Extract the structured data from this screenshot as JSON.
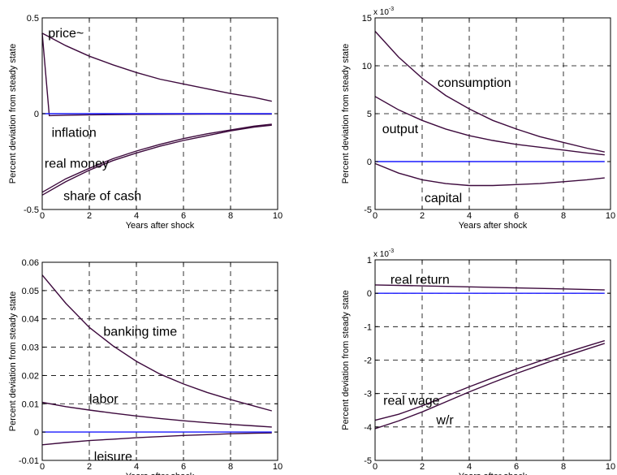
{
  "chart_data": [
    {
      "type": "line",
      "xlabel": "Years after shock",
      "ylabel": "Percent deviation from steady state",
      "xlim": [
        0,
        10
      ],
      "ylim": [
        -0.5,
        0.5
      ],
      "xticks": [
        "0",
        "2",
        "4",
        "6",
        "8",
        "10"
      ],
      "yticks": [
        {
          "v": -0.5,
          "label": "-0.5"
        },
        {
          "v": 0,
          "label": "0"
        },
        {
          "v": 0.5,
          "label": "0.5"
        }
      ],
      "grid": true,
      "exponent_label": "",
      "series": [
        {
          "color": "#3d0a3d",
          "x": [
            0,
            1,
            2,
            3,
            4,
            5,
            6,
            7,
            8,
            9,
            9.75
          ],
          "y": [
            0.42,
            0.355,
            0.3,
            0.255,
            0.215,
            0.18,
            0.155,
            0.13,
            0.105,
            0.085,
            0.065
          ]
        },
        {
          "color": "#3d0a3d",
          "x": [
            0,
            0.3,
            1,
            2,
            4,
            6,
            8,
            9.75
          ],
          "y": [
            0.42,
            -0.01,
            -0.008,
            -0.006,
            -0.004,
            -0.003,
            -0.002,
            -0.002
          ]
        },
        {
          "color": "#3d0a3d",
          "x": [
            0,
            1,
            2,
            3,
            4,
            5,
            6,
            7,
            8,
            9,
            9.75
          ],
          "y": [
            -0.41,
            -0.34,
            -0.285,
            -0.235,
            -0.195,
            -0.16,
            -0.13,
            -0.105,
            -0.085,
            -0.065,
            -0.055
          ]
        },
        {
          "color": "#3d0a3d",
          "x": [
            0,
            1,
            2,
            3,
            4,
            5,
            6,
            7,
            8,
            9,
            9.75
          ],
          "y": [
            -0.425,
            -0.355,
            -0.295,
            -0.245,
            -0.205,
            -0.17,
            -0.14,
            -0.115,
            -0.09,
            -0.07,
            -0.06
          ]
        },
        {
          "color": "#1a1aff",
          "x": [
            0,
            9.75
          ],
          "y": [
            0,
            0
          ]
        }
      ],
      "annotations": [
        {
          "text": "price~",
          "x": 0.25,
          "y": 0.42
        },
        {
          "text": "inflation",
          "x": 0.4,
          "y": -0.1
        },
        {
          "text": "real money",
          "x": 0.1,
          "y": -0.26
        },
        {
          "text": "share of cash",
          "x": 0.9,
          "y": -0.43
        }
      ]
    },
    {
      "type": "line",
      "xlabel": "Years after shock",
      "ylabel": "Percent deviation from steady state",
      "xlim": [
        0,
        10
      ],
      "ylim": [
        -5,
        15
      ],
      "xticks": [
        "0",
        "2",
        "4",
        "6",
        "8",
        "10"
      ],
      "yticks": [
        {
          "v": -5,
          "label": "-5"
        },
        {
          "v": 0,
          "label": "0"
        },
        {
          "v": 5,
          "label": "5"
        },
        {
          "v": 10,
          "label": "10"
        },
        {
          "v": 15,
          "label": "15"
        }
      ],
      "grid": true,
      "exponent_label": "x 10-3",
      "series": [
        {
          "name": "consumption",
          "color": "#3d0a3d",
          "x": [
            0,
            1,
            2,
            3,
            4,
            5,
            6,
            7,
            8,
            9,
            9.75
          ],
          "y": [
            13.6,
            10.9,
            8.7,
            6.9,
            5.5,
            4.3,
            3.4,
            2.6,
            2.0,
            1.4,
            1.0
          ]
        },
        {
          "name": "output",
          "color": "#3d0a3d",
          "x": [
            0,
            1,
            2,
            3,
            4,
            5,
            6,
            7,
            8,
            9,
            9.75
          ],
          "y": [
            6.8,
            5.4,
            4.3,
            3.4,
            2.7,
            2.2,
            1.8,
            1.5,
            1.2,
            0.9,
            0.7
          ]
        },
        {
          "name": "capital",
          "color": "#3d0a3d",
          "x": [
            0,
            1,
            2,
            3,
            4,
            5,
            6,
            7,
            8,
            9,
            9.75
          ],
          "y": [
            -0.2,
            -1.2,
            -1.9,
            -2.3,
            -2.5,
            -2.5,
            -2.4,
            -2.3,
            -2.1,
            -1.9,
            -1.7
          ]
        },
        {
          "color": "#1a1aff",
          "x": [
            0,
            9.75
          ],
          "y": [
            0,
            0
          ]
        }
      ],
      "annotations": [
        {
          "text": "consumption",
          "x": 2.65,
          "y": 8.2
        },
        {
          "text": "output",
          "x": 0.3,
          "y": 3.4
        },
        {
          "text": "capital",
          "x": 2.1,
          "y": -3.8
        }
      ]
    },
    {
      "type": "line",
      "xlabel": "Years after shock",
      "ylabel": "Percent deviation from steady state",
      "xlim": [
        0,
        10
      ],
      "ylim": [
        -0.01,
        0.06
      ],
      "xticks": [
        "0",
        "2",
        "4",
        "6",
        "8",
        "10"
      ],
      "yticks": [
        {
          "v": -0.01,
          "label": "-0.01"
        },
        {
          "v": 0,
          "label": "0"
        },
        {
          "v": 0.01,
          "label": "0.01"
        },
        {
          "v": 0.02,
          "label": "0.02"
        },
        {
          "v": 0.03,
          "label": "0.03"
        },
        {
          "v": 0.04,
          "label": "0.04"
        },
        {
          "v": 0.05,
          "label": "0.05"
        },
        {
          "v": 0.06,
          "label": "0.06"
        }
      ],
      "grid": true,
      "exponent_label": "",
      "series": [
        {
          "name": "banking time",
          "color": "#3d0a3d",
          "x": [
            0,
            1,
            2,
            3,
            4,
            5,
            6,
            7,
            8,
            9,
            9.75
          ],
          "y": [
            0.0555,
            0.0455,
            0.037,
            0.0305,
            0.025,
            0.0205,
            0.017,
            0.014,
            0.0115,
            0.0092,
            0.0075
          ]
        },
        {
          "name": "labor",
          "color": "#3d0a3d",
          "x": [
            0,
            1,
            2,
            3,
            4,
            5,
            6,
            7,
            8,
            9,
            9.75
          ],
          "y": [
            0.0105,
            0.009,
            0.0078,
            0.0067,
            0.0057,
            0.0048,
            0.004,
            0.0033,
            0.0027,
            0.0022,
            0.0018
          ]
        },
        {
          "name": "leisure",
          "color": "#3d0a3d",
          "x": [
            0,
            1,
            2,
            3,
            4,
            5,
            6,
            7,
            8,
            9,
            9.75
          ],
          "y": [
            -0.0045,
            -0.0037,
            -0.003,
            -0.0025,
            -0.002,
            -0.0016,
            -0.0012,
            -0.0009,
            -0.0006,
            -0.0004,
            -0.0003
          ]
        },
        {
          "color": "#1a1aff",
          "x": [
            0,
            9.75
          ],
          "y": [
            0,
            0
          ]
        }
      ],
      "annotations": [
        {
          "text": "banking time",
          "x": 2.6,
          "y": 0.0355
        },
        {
          "text": "labor",
          "x": 2.0,
          "y": 0.0116
        },
        {
          "text": "leisure",
          "x": 2.2,
          "y": -0.0087
        }
      ]
    },
    {
      "type": "line",
      "xlabel": "Years after shock",
      "ylabel": "Percent deviation from steady state",
      "xlim": [
        0,
        10
      ],
      "ylim": [
        -5,
        1
      ],
      "xticks": [
        "0",
        "2",
        "4",
        "6",
        "8",
        "10"
      ],
      "yticks": [
        {
          "v": -5,
          "label": "-5"
        },
        {
          "v": -4,
          "label": "-4"
        },
        {
          "v": -3,
          "label": "-3"
        },
        {
          "v": -2,
          "label": "-2"
        },
        {
          "v": -1,
          "label": "-1"
        },
        {
          "v": 0,
          "label": "0"
        },
        {
          "v": 1,
          "label": "1"
        }
      ],
      "grid": true,
      "exponent_label": "x 10-3",
      "series": [
        {
          "name": "real return",
          "color": "#3d0a3d",
          "x": [
            0,
            2,
            4,
            6,
            8,
            9.75
          ],
          "y": [
            0.25,
            0.22,
            0.19,
            0.16,
            0.13,
            0.1
          ]
        },
        {
          "name": "real wage",
          "color": "#3d0a3d",
          "x": [
            0,
            1,
            2,
            3,
            4,
            5,
            6,
            7,
            8,
            9,
            9.75
          ],
          "y": [
            -3.8,
            -3.62,
            -3.37,
            -3.08,
            -2.8,
            -2.53,
            -2.27,
            -2.03,
            -1.8,
            -1.58,
            -1.42
          ]
        },
        {
          "name": "w/r",
          "color": "#3d0a3d",
          "x": [
            0,
            1,
            2,
            3,
            4,
            5,
            6,
            7,
            8,
            9,
            9.75
          ],
          "y": [
            -4.05,
            -3.82,
            -3.55,
            -3.25,
            -2.95,
            -2.67,
            -2.4,
            -2.15,
            -1.9,
            -1.67,
            -1.5
          ]
        },
        {
          "color": "#1a1aff",
          "x": [
            0,
            9.75
          ],
          "y": [
            0,
            0
          ]
        }
      ],
      "annotations": [
        {
          "text": "real return",
          "x": 0.65,
          "y": 0.4
        },
        {
          "text": "real wage",
          "x": 0.35,
          "y": -3.22
        },
        {
          "text": "w/r",
          "x": 2.6,
          "y": -3.8
        }
      ]
    }
  ]
}
